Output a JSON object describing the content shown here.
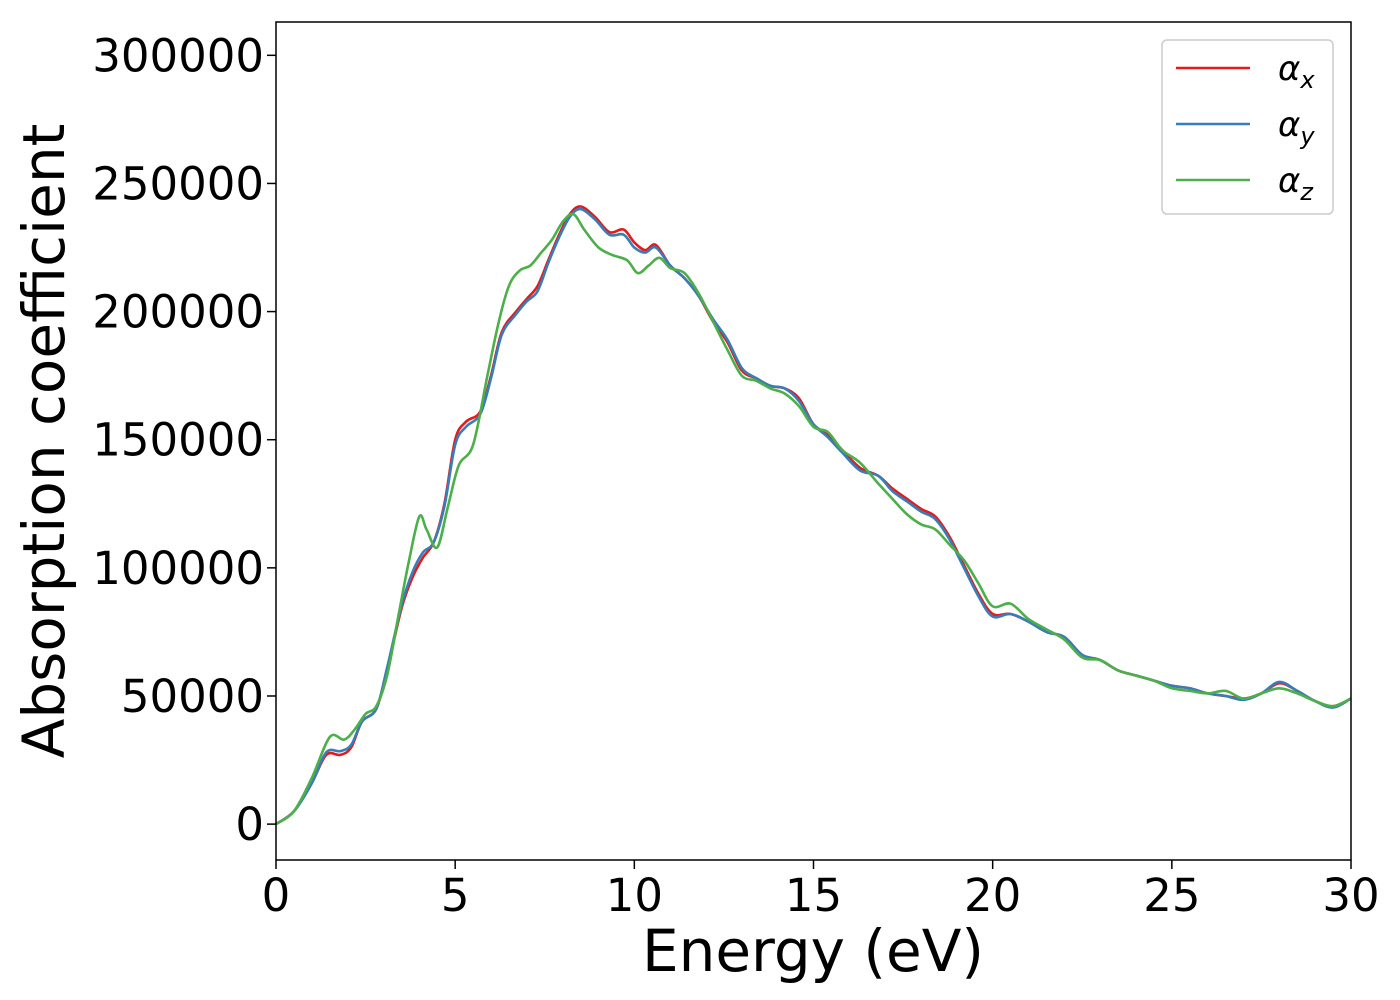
{
  "chart_data": {
    "type": "line",
    "title": "",
    "xlabel": "Energy (eV)",
    "ylabel": "Absorption coefficient",
    "xlim": [
      0,
      30
    ],
    "ylim": [
      -14000,
      313000
    ],
    "xticks": [
      0,
      5,
      10,
      15,
      20,
      25,
      30
    ],
    "xtick_labels": [
      "0",
      "5",
      "10",
      "15",
      "20",
      "25",
      "30"
    ],
    "yticks": [
      0,
      50000,
      100000,
      150000,
      200000,
      250000,
      300000
    ],
    "ytick_labels": [
      "0",
      "50000",
      "100000",
      "150000",
      "200000",
      "250000",
      "300000"
    ],
    "grid": false,
    "legend_position": "top-right",
    "series": [
      {
        "name": "α",
        "subscript": "x",
        "color": "#e41a1c",
        "x": [
          0,
          0.5,
          1.0,
          1.4,
          1.8,
          2.1,
          2.4,
          2.8,
          3.1,
          3.5,
          3.8,
          4.1,
          4.4,
          4.7,
          5.0,
          5.3,
          5.7,
          6.0,
          6.3,
          6.7,
          7.0,
          7.3,
          7.6,
          7.9,
          8.2,
          8.5,
          8.9,
          9.3,
          9.7,
          10.0,
          10.3,
          10.6,
          11.0,
          11.4,
          11.8,
          12.2,
          12.6,
          13.0,
          13.4,
          13.8,
          14.2,
          14.6,
          15.0,
          15.4,
          15.8,
          16.3,
          16.8,
          17.2,
          17.6,
          18.0,
          18.4,
          18.8,
          19.2,
          19.6,
          20.0,
          20.5,
          21.0,
          21.5,
          22.0,
          22.5,
          23.0,
          23.5,
          24.0,
          24.5,
          25.0,
          25.5,
          26.0,
          26.5,
          27.0,
          27.5,
          28.0,
          28.5,
          29.0,
          29.5,
          30.0
        ],
        "values": [
          0,
          5000,
          16000,
          27000,
          27000,
          30000,
          40000,
          45000,
          60000,
          84000,
          96000,
          104000,
          110000,
          125000,
          150000,
          157000,
          161000,
          175000,
          192000,
          200000,
          205000,
          210000,
          220000,
          230000,
          238000,
          241000,
          237000,
          231000,
          232000,
          227000,
          224000,
          226000,
          218000,
          213000,
          206000,
          196000,
          188000,
          177000,
          174000,
          171000,
          170000,
          166000,
          156000,
          152000,
          146000,
          139000,
          136000,
          131000,
          127000,
          123000,
          120000,
          112000,
          101000,
          90000,
          82000,
          82000,
          79000,
          75000,
          73000,
          66000,
          64000,
          60000,
          58000,
          56000,
          54000,
          53000,
          51000,
          50000,
          49000,
          51000,
          55000,
          52000,
          48000,
          46000,
          49000
        ]
      },
      {
        "name": "α",
        "subscript": "y",
        "color": "#377eb8",
        "x": [
          0,
          0.5,
          1.0,
          1.4,
          1.8,
          2.1,
          2.4,
          2.8,
          3.1,
          3.5,
          3.8,
          4.1,
          4.4,
          4.7,
          5.0,
          5.3,
          5.7,
          6.0,
          6.3,
          6.7,
          7.0,
          7.3,
          7.6,
          7.9,
          8.2,
          8.5,
          8.9,
          9.3,
          9.7,
          10.0,
          10.3,
          10.6,
          11.0,
          11.4,
          11.8,
          12.2,
          12.6,
          13.0,
          13.4,
          13.8,
          14.2,
          14.6,
          15.0,
          15.4,
          15.8,
          16.3,
          16.8,
          17.2,
          17.6,
          18.0,
          18.4,
          18.8,
          19.2,
          19.6,
          20.0,
          20.5,
          21.0,
          21.5,
          22.0,
          22.5,
          23.0,
          23.5,
          24.0,
          24.5,
          25.0,
          25.5,
          26.0,
          26.5,
          27.0,
          27.5,
          28.0,
          28.5,
          29.0,
          29.5,
          30.0
        ],
        "values": [
          0,
          5000,
          16000,
          28000,
          28500,
          31000,
          40000,
          45000,
          61000,
          85000,
          98000,
          106000,
          110000,
          124000,
          148000,
          155000,
          160000,
          174000,
          191000,
          199000,
          204000,
          208000,
          219000,
          229000,
          237000,
          240000,
          236000,
          230000,
          230000,
          225000,
          223000,
          225000,
          218000,
          213000,
          206000,
          197000,
          189000,
          178000,
          174000,
          171000,
          170000,
          165000,
          156000,
          151000,
          145000,
          138000,
          136000,
          130000,
          126000,
          122000,
          119000,
          111000,
          100000,
          89000,
          81000,
          82000,
          79000,
          75000,
          73000,
          66000,
          64000,
          60000,
          58000,
          56000,
          54000,
          53000,
          51000,
          50000,
          48500,
          51000,
          55500,
          52000,
          48000,
          45500,
          49000
        ]
      },
      {
        "name": "α",
        "subscript": "z",
        "color": "#4daf4a",
        "x": [
          0,
          0.5,
          1.0,
          1.5,
          1.9,
          2.2,
          2.5,
          2.8,
          3.1,
          3.4,
          3.7,
          4.0,
          4.2,
          4.5,
          4.8,
          5.1,
          5.5,
          5.9,
          6.2,
          6.5,
          6.8,
          7.1,
          7.4,
          7.7,
          8.0,
          8.3,
          8.6,
          9.0,
          9.4,
          9.8,
          10.1,
          10.4,
          10.7,
          11.0,
          11.4,
          11.8,
          12.2,
          12.6,
          13.0,
          13.4,
          13.8,
          14.2,
          14.6,
          15.0,
          15.4,
          15.8,
          16.3,
          16.8,
          17.2,
          17.6,
          18.0,
          18.4,
          18.8,
          19.2,
          19.6,
          20.0,
          20.5,
          21.0,
          21.5,
          22.0,
          22.5,
          23.0,
          23.5,
          24.0,
          24.5,
          25.0,
          25.5,
          26.0,
          26.5,
          27.0,
          27.5,
          28.0,
          28.5,
          29.0,
          29.5,
          30.0
        ],
        "values": [
          0,
          5000,
          18000,
          34000,
          33000,
          37000,
          43000,
          46000,
          58000,
          80000,
          102000,
          120000,
          115000,
          108000,
          124000,
          140000,
          148000,
          175000,
          195000,
          210000,
          216000,
          218000,
          223000,
          228000,
          235000,
          238000,
          232000,
          225000,
          222000,
          220000,
          215000,
          218000,
          221000,
          217000,
          215000,
          207000,
          196000,
          185000,
          175000,
          173000,
          170000,
          168000,
          163000,
          155000,
          153000,
          146000,
          141000,
          133000,
          127000,
          121000,
          117000,
          115000,
          109000,
          103000,
          94000,
          85000,
          86000,
          80000,
          76000,
          72000,
          65000,
          64000,
          60000,
          58000,
          56000,
          53000,
          52000,
          51000,
          52000,
          49000,
          51000,
          53000,
          51000,
          48000,
          46000,
          49000
        ]
      }
    ]
  }
}
